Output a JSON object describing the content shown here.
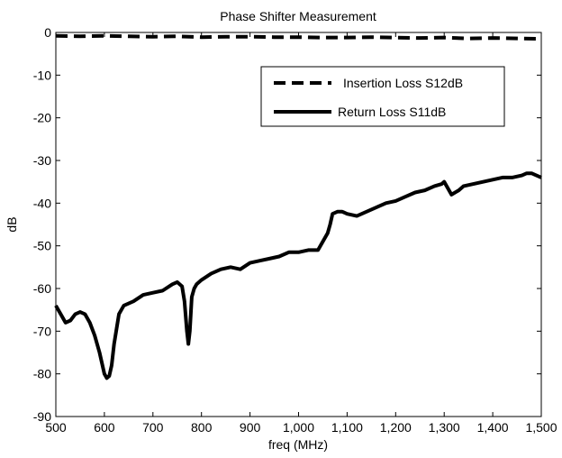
{
  "chart_data": {
    "type": "line",
    "title": "Phase Shifter Measurement",
    "xlabel": "freq (MHz)",
    "ylabel": "dB",
    "xlim": [
      500,
      1500
    ],
    "ylim": [
      -90,
      0
    ],
    "x_ticks": [
      500,
      600,
      700,
      800,
      900,
      1000,
      1100,
      1200,
      1300,
      1400,
      1500
    ],
    "x_tick_labels": [
      "500",
      "600",
      "700",
      "800",
      "900",
      "1,000",
      "1,100",
      "1,200",
      "1,300",
      "1,400",
      "1,500"
    ],
    "y_ticks": [
      0,
      -10,
      -20,
      -30,
      -40,
      -50,
      -60,
      -70,
      -80,
      -90
    ],
    "y_tick_labels": [
      "0",
      "-10",
      "-20",
      "-30",
      "-40",
      "-50",
      "-60",
      "-70",
      "-80",
      "-90"
    ],
    "grid": false,
    "legend_position": "top-right",
    "series": [
      {
        "name": "Insertion Loss S12dB",
        "style": "dashed",
        "color": "#000000",
        "x": [
          500,
          550,
          600,
          650,
          700,
          750,
          800,
          850,
          900,
          950,
          1000,
          1050,
          1100,
          1150,
          1200,
          1250,
          1300,
          1350,
          1400,
          1450,
          1500
        ],
        "y": [
          -0.8,
          -0.9,
          -0.8,
          -0.9,
          -1.0,
          -0.9,
          -1.1,
          -1.0,
          -1.0,
          -1.1,
          -1.1,
          -1.2,
          -1.2,
          -1.1,
          -1.2,
          -1.3,
          -1.2,
          -1.4,
          -1.3,
          -1.4,
          -1.5
        ]
      },
      {
        "name": "Return Loss S11dB",
        "style": "solid",
        "color": "#000000",
        "x": [
          500,
          510,
          520,
          530,
          540,
          550,
          560,
          570,
          580,
          590,
          600,
          605,
          610,
          615,
          620,
          630,
          640,
          660,
          680,
          700,
          720,
          740,
          750,
          760,
          765,
          770,
          773,
          776,
          780,
          785,
          790,
          800,
          820,
          840,
          860,
          880,
          900,
          920,
          940,
          960,
          980,
          1000,
          1020,
          1040,
          1060,
          1065,
          1070,
          1080,
          1090,
          1100,
          1120,
          1140,
          1160,
          1180,
          1200,
          1220,
          1240,
          1260,
          1280,
          1295,
          1300,
          1310,
          1315,
          1330,
          1340,
          1360,
          1380,
          1400,
          1420,
          1440,
          1460,
          1470,
          1480,
          1490,
          1500
        ],
        "y": [
          -64,
          -66,
          -68,
          -67.5,
          -66,
          -65.5,
          -66,
          -68,
          -71,
          -75,
          -80,
          -81,
          -80.5,
          -78,
          -73,
          -66,
          -64,
          -63,
          -61.5,
          -61,
          -60.5,
          -59,
          -58.5,
          -59.5,
          -63,
          -70,
          -73,
          -70,
          -62,
          -60,
          -59,
          -58,
          -56.5,
          -55.5,
          -55,
          -55.5,
          -54,
          -53.5,
          -53,
          -52.5,
          -51.5,
          -51.5,
          -51,
          -51,
          -47,
          -45,
          -42.5,
          -42,
          -42,
          -42.5,
          -43,
          -42,
          -41,
          -40,
          -39.5,
          -38.5,
          -37.5,
          -37,
          -36,
          -35.5,
          -35,
          -37,
          -38,
          -37,
          -36,
          -35.5,
          -35,
          -34.5,
          -34,
          -34,
          -33.5,
          -33,
          -33,
          -33.5,
          -34
        ]
      }
    ]
  }
}
